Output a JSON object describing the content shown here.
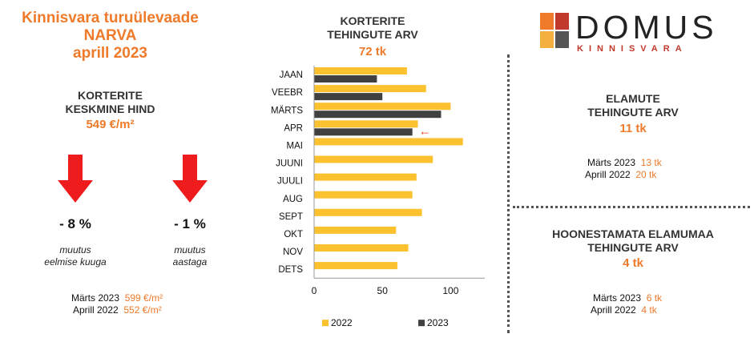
{
  "left": {
    "title_line1": "Kinnisvara turuülevaade",
    "title_line2": "NARVA",
    "title_line3": "aprill 2023",
    "price_head1": "KORTERITE",
    "price_head2": "KESKMINE HIND",
    "price_value": "549 €/m²",
    "monthly_change": "- 8 %",
    "monthly_label1": "muutus",
    "monthly_label2": "eelmise kuuga",
    "yearly_change": "- 1 %",
    "yearly_label1": "muutus",
    "yearly_label2": "aastaga",
    "cmp1_label": "Märts 2023",
    "cmp1_value": "599 €/m²",
    "cmp2_label": "Aprill 2022",
    "cmp2_value": "552 €/m²",
    "arrow_color": "#ee1c1c"
  },
  "chart_title": {
    "line1": "KORTERITE",
    "line2": "TEHINGUTE ARV",
    "value": "72 tk"
  },
  "chart_data": {
    "type": "bar",
    "orientation": "horizontal",
    "categories": [
      "JAAN",
      "VEEBR",
      "MÄRTS",
      "APR",
      "MAI",
      "JUUNI",
      "JUULI",
      "AUG",
      "SEPT",
      "OKT",
      "NOV",
      "DETS"
    ],
    "series": [
      {
        "name": "2022",
        "color": "#fcc12e",
        "values": [
          68,
          82,
          100,
          76,
          109,
          87,
          75,
          72,
          79,
          60,
          69,
          61
        ]
      },
      {
        "name": "2023",
        "color": "#404040",
        "values": [
          46,
          50,
          93,
          72,
          null,
          null,
          null,
          null,
          null,
          null,
          null,
          null
        ]
      }
    ],
    "xlim": [
      0,
      125
    ],
    "xticks": [
      0,
      50,
      100
    ],
    "legend_position": "bottom",
    "annotation": {
      "category": "APR",
      "symbol": "←",
      "color": "#ee4422"
    }
  },
  "logo": {
    "name": "DOMUS",
    "sub": "KINNISVARA",
    "colors": [
      "#ee7a2a",
      "#c0392b",
      "#f4b03e",
      "#555555"
    ]
  },
  "right": {
    "houses_head1": "ELAMUTE",
    "houses_head2": "TEHINGUTE ARV",
    "houses_value": "11 tk",
    "houses_cmp1_label": "Märts 2023",
    "houses_cmp1_value": "13 tk",
    "houses_cmp2_label": "Aprill 2022",
    "houses_cmp2_value": "20 tk",
    "land_head1": "HOONESTAMATA ELAMUMAA",
    "land_head2": "TEHINGUTE ARV",
    "land_value": "4 tk",
    "land_cmp1_label": "Märts 2023",
    "land_cmp1_value": "6 tk",
    "land_cmp2_label": "Aprill 2022",
    "land_cmp2_value": "4 tk"
  }
}
